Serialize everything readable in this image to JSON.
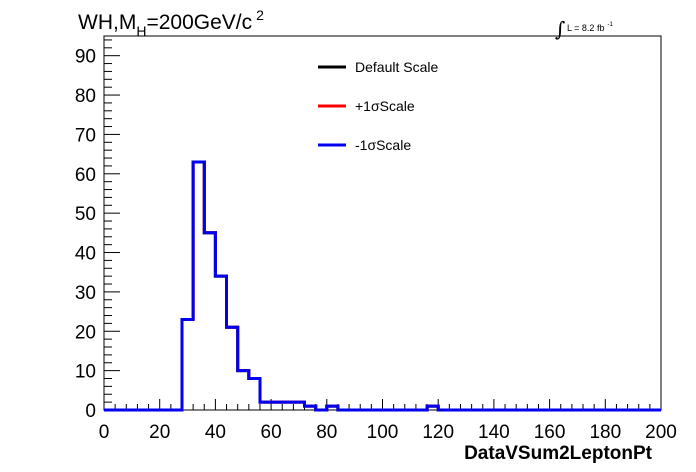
{
  "chart_data": {
    "type": "line",
    "title": {
      "prefix": "WH,M",
      "subscript": "H",
      "mass": "=200GeV/c",
      "superscript": "2"
    },
    "luminosity": {
      "integral_symbol": "∫",
      "text": "L = 8.2 fb",
      "superscript": "-1"
    },
    "xlabel": "DataVSum2LeptonPt",
    "ylabel": "",
    "xlim": [
      0,
      200
    ],
    "ylim": [
      0,
      95
    ],
    "xticks": [
      0,
      20,
      40,
      60,
      80,
      100,
      120,
      140,
      160,
      180,
      200
    ],
    "yticks": [
      0,
      10,
      20,
      30,
      40,
      50,
      60,
      70,
      80,
      90
    ],
    "bin_edges": [
      0,
      4,
      8,
      12,
      16,
      20,
      24,
      28,
      32,
      36,
      40,
      44,
      48,
      52,
      56,
      60,
      64,
      68,
      72,
      76,
      80,
      84,
      88,
      92,
      96,
      100,
      104,
      108,
      112,
      116,
      120,
      124,
      128,
      132,
      136,
      140,
      144,
      148,
      152,
      156,
      160,
      164,
      168,
      172,
      176,
      180,
      184,
      188,
      192,
      196,
      200
    ],
    "series": [
      {
        "name": "Default Scale",
        "color": "#000000",
        "values": [
          0,
          0,
          0,
          0,
          0,
          0,
          0,
          23,
          63,
          45,
          34,
          21,
          10,
          8,
          2,
          2,
          2,
          2,
          1,
          0,
          1,
          0,
          0,
          0,
          0,
          0,
          0,
          0,
          0,
          1,
          0,
          0,
          0,
          0,
          0,
          0,
          0,
          0,
          0,
          0,
          0,
          0,
          0,
          0,
          0,
          0,
          0,
          0,
          0,
          0
        ]
      },
      {
        "name": "+1σScale",
        "color": "#ff0000",
        "values": [
          0,
          0,
          0,
          0,
          0,
          0,
          0,
          23,
          63,
          45,
          34,
          21,
          10,
          8,
          2,
          2,
          2,
          2,
          1,
          0,
          1,
          0,
          0,
          0,
          0,
          0,
          0,
          0,
          0,
          1,
          0,
          0,
          0,
          0,
          0,
          0,
          0,
          0,
          0,
          0,
          0,
          0,
          0,
          0,
          0,
          0,
          0,
          0,
          0,
          0
        ]
      },
      {
        "name": "-1σScale",
        "color": "#0000ee",
        "values": [
          0,
          0,
          0,
          0,
          0,
          0,
          0,
          23,
          63,
          45,
          34,
          21,
          10,
          8,
          2,
          2,
          2,
          2,
          1,
          0,
          1,
          0,
          0,
          0,
          0,
          0,
          0,
          0,
          0,
          1,
          0,
          0,
          0,
          0,
          0,
          0,
          0,
          0,
          0,
          0,
          0,
          0,
          0,
          0,
          0,
          0,
          0,
          0,
          0,
          0
        ]
      }
    ],
    "legend_position": "top-right",
    "grid": false
  }
}
